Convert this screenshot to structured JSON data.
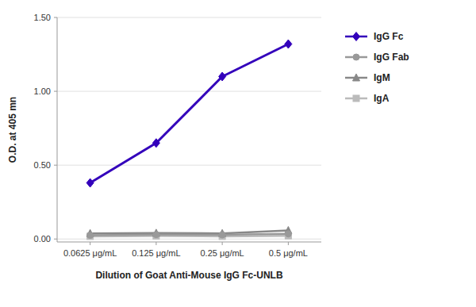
{
  "chart_data": {
    "type": "line",
    "categories": [
      "0.0625 μg/mL",
      "0.125 μg/mL",
      "0.25 μg/mL",
      "0.5 μg/mL"
    ],
    "series": [
      {
        "name": "IgG Fc",
        "color": "#3300BB",
        "marker": "diamond",
        "values": [
          0.38,
          0.65,
          1.1,
          1.32
        ]
      },
      {
        "name": "IgG Fab",
        "color": "#999999",
        "marker": "circle",
        "values": [
          0.025,
          0.03,
          0.028,
          0.035
        ]
      },
      {
        "name": "IgM",
        "color": "#888888",
        "marker": "triangle",
        "values": [
          0.038,
          0.04,
          0.038,
          0.058
        ]
      },
      {
        "name": "IgA",
        "color": "#BBBBBB",
        "marker": "square",
        "values": [
          0.018,
          0.02,
          0.018,
          0.022
        ]
      }
    ],
    "xlabel": "Dilution of Goat Anti-Mouse IgG Fc-UNLB",
    "ylabel": "O.D. at 405 mn",
    "ylim": [
      -0.02,
      1.5
    ],
    "yticks": [
      {
        "value": 0,
        "label": "0.00"
      },
      {
        "value": 0.5,
        "label": "0.50"
      },
      {
        "value": 1,
        "label": "1.00"
      },
      {
        "value": 1.5,
        "label": "1.50"
      }
    ],
    "grid": true,
    "legend": "right"
  }
}
